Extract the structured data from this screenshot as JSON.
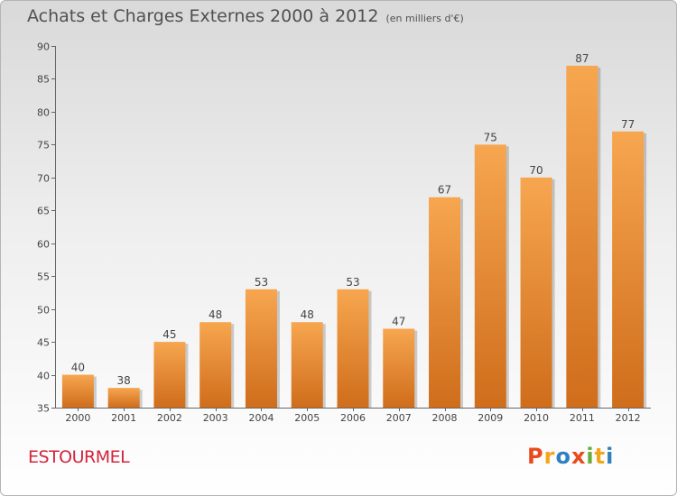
{
  "title": "Achats et Charges Externes 2000 à 2012",
  "subtitle": "(en milliers d'€)",
  "commune": "ESTOURMEL",
  "logo": "Proxiti",
  "colors": {
    "bar_light": "#f7a650",
    "bar_dark": "#cf6d1b",
    "title_text": "#505050",
    "commune_text": "#d1263c",
    "logo_letters": [
      "#e94b1d",
      "#f2a71b",
      "#2f7fc1",
      "#e94b1d",
      "#6aac3a",
      "#f2a71b",
      "#2f7fc1"
    ]
  },
  "chart_data": {
    "type": "bar",
    "categories": [
      "2000",
      "2001",
      "2002",
      "2003",
      "2004",
      "2005",
      "2006",
      "2007",
      "2008",
      "2009",
      "2010",
      "2011",
      "2012"
    ],
    "values": [
      40,
      38,
      45,
      48,
      53,
      48,
      53,
      47,
      67,
      75,
      70,
      87,
      77
    ],
    "title": "Achats et Charges Externes 2000 à 2012",
    "xlabel": "",
    "ylabel": "",
    "ylim": [
      35,
      90
    ],
    "yticks": [
      35,
      40,
      45,
      50,
      55,
      60,
      65,
      70,
      75,
      80,
      85,
      90
    ],
    "grid": false,
    "data_labels": true
  }
}
